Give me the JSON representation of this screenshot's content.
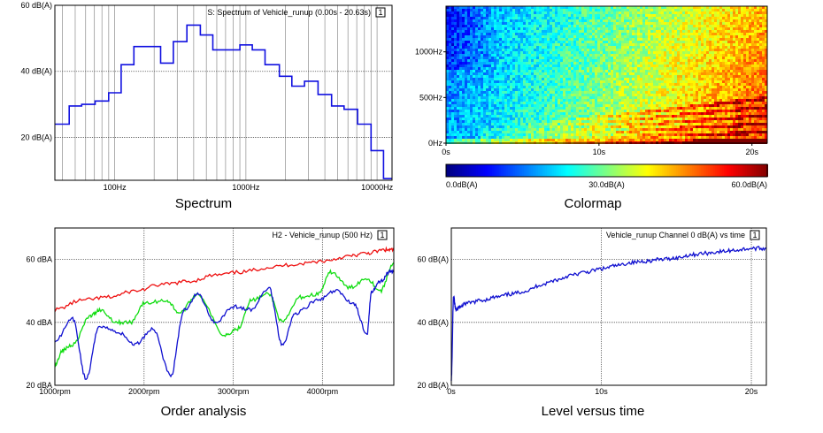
{
  "captions": {
    "spectrum": "Spectrum",
    "colormap": "Colormap",
    "order": "Order analysis",
    "level": "Level versus time"
  },
  "colors": {
    "spectrum_line": "#1010e0",
    "red_series": "#ee1010",
    "green_series": "#10dd10",
    "blue_series": "#1010d0",
    "grid": "#9a9a9a",
    "frame": "#000000"
  },
  "chart_data": [
    {
      "id": "spectrum",
      "type": "line",
      "title": "S: Spectrum of Vehicle_runup (0.00s - 20.63s)",
      "cursor_badge": "1",
      "x_scale": "log",
      "xlim": [
        35,
        13000
      ],
      "ylim": [
        7,
        60
      ],
      "x_ticks": [
        {
          "v": 100,
          "label": "100Hz"
        },
        {
          "v": 1000,
          "label": "1000Hz"
        },
        {
          "v": 10000,
          "label": "10000Hz"
        }
      ],
      "y_ticks": [
        {
          "v": 60,
          "label": "60 dB(A)"
        },
        {
          "v": 40,
          "label": "40 dB(A)"
        },
        {
          "v": 20,
          "label": "20 dB(A)"
        }
      ],
      "style": "steps",
      "bands": [
        {
          "f0": 35,
          "f1": 45,
          "y": 24
        },
        {
          "f0": 45,
          "f1": 56,
          "y": 29.5
        },
        {
          "f0": 56,
          "f1": 71,
          "y": 30
        },
        {
          "f0": 71,
          "f1": 90,
          "y": 31
        },
        {
          "f0": 90,
          "f1": 112,
          "y": 33.5
        },
        {
          "f0": 112,
          "f1": 140,
          "y": 42
        },
        {
          "f0": 140,
          "f1": 224,
          "y": 47.5
        },
        {
          "f0": 224,
          "f1": 280,
          "y": 42.5
        },
        {
          "f0": 280,
          "f1": 355,
          "y": 49
        },
        {
          "f0": 355,
          "f1": 450,
          "y": 54
        },
        {
          "f0": 450,
          "f1": 560,
          "y": 51
        },
        {
          "f0": 560,
          "f1": 900,
          "y": 46.5
        },
        {
          "f0": 900,
          "f1": 1120,
          "y": 48
        },
        {
          "f0": 1120,
          "f1": 1400,
          "y": 46.5
        },
        {
          "f0": 1400,
          "f1": 1800,
          "y": 42
        },
        {
          "f0": 1800,
          "f1": 2240,
          "y": 38.5
        },
        {
          "f0": 2240,
          "f1": 2800,
          "y": 35.5
        },
        {
          "f0": 2800,
          "f1": 3550,
          "y": 37
        },
        {
          "f0": 3550,
          "f1": 4500,
          "y": 33
        },
        {
          "f0": 4500,
          "f1": 5600,
          "y": 29.5
        },
        {
          "f0": 5600,
          "f1": 7100,
          "y": 28.5
        },
        {
          "f0": 7100,
          "f1": 9000,
          "y": 24
        },
        {
          "f0": 9000,
          "f1": 11200,
          "y": 16
        },
        {
          "f0": 11200,
          "f1": 13000,
          "y": 7.5
        }
      ]
    },
    {
      "id": "colormap",
      "type": "heatmap",
      "xlim": [
        0,
        21
      ],
      "ylim": [
        0,
        1500
      ],
      "x_ticks": [
        {
          "v": 0,
          "label": "0s"
        },
        {
          "v": 10,
          "label": "10s"
        },
        {
          "v": 20,
          "label": "20s"
        }
      ],
      "y_ticks": [
        {
          "v": 1000,
          "label": "1000Hz"
        },
        {
          "v": 500,
          "label": "500Hz"
        },
        {
          "v": 0,
          "label": "0Hz"
        }
      ],
      "colorbar": {
        "min": 0,
        "max": 60,
        "labels": [
          "0.0dB(A)",
          "30.0dB(A)",
          "60.0dB(A)"
        ]
      },
      "colormap": "jet"
    },
    {
      "id": "order",
      "type": "line",
      "title": "H2 - Vehicle_runup (500 Hz)",
      "cursor_badge": "1",
      "xlim": [
        1000,
        4800
      ],
      "ylim": [
        20,
        70
      ],
      "x_ticks": [
        {
          "v": 1000,
          "label": "1000rpm"
        },
        {
          "v": 2000,
          "label": "2000rpm"
        },
        {
          "v": 3000,
          "label": "3000rpm"
        },
        {
          "v": 4000,
          "label": "4000rpm"
        }
      ],
      "y_ticks": [
        {
          "v": 60,
          "label": "60 dBA"
        },
        {
          "v": 40,
          "label": "40 dBA"
        },
        {
          "v": 20,
          "label": "20 dBA"
        }
      ],
      "series": [
        {
          "color_key": "red_series",
          "x": [
            1000,
            1300,
            1600,
            1900,
            2200,
            2500,
            2800,
            3100,
            3400,
            3700,
            4000,
            4300,
            4500,
            4700,
            4800
          ],
          "y": [
            44,
            47,
            48,
            50,
            52,
            53,
            55,
            56,
            57.5,
            58.5,
            59.5,
            61,
            62,
            63,
            63
          ]
        },
        {
          "color_key": "green_series",
          "x": [
            1000,
            1080,
            1200,
            1400,
            1500,
            1700,
            1850,
            2000,
            2250,
            2400,
            2600,
            2900,
            3050,
            3200,
            3400,
            3550,
            3750,
            3950,
            4100,
            4300,
            4500,
            4650,
            4800
          ],
          "y": [
            26,
            31,
            33,
            42,
            44,
            40,
            40,
            46,
            47,
            43,
            49,
            36,
            38,
            47,
            49,
            40,
            48,
            49,
            56,
            51,
            54,
            50,
            59
          ]
        },
        {
          "color_key": "blue_series",
          "x": [
            1000,
            1200,
            1350,
            1500,
            1700,
            1900,
            2100,
            2300,
            2450,
            2600,
            2800,
            3000,
            3200,
            3400,
            3550,
            3700,
            3950,
            4150,
            4350,
            4500,
            4550,
            4650,
            4750,
            4800
          ],
          "y": [
            34,
            41,
            22,
            39,
            37,
            33,
            38,
            23,
            44,
            49,
            40,
            45,
            44,
            51,
            33,
            43,
            47,
            50,
            46,
            36,
            50,
            53,
            56,
            56
          ]
        }
      ]
    },
    {
      "id": "level",
      "type": "line",
      "title": "Vehicle_runup Channel 0 dB(A) vs time",
      "cursor_badge": "1",
      "xlim": [
        0,
        21
      ],
      "ylim": [
        20,
        70
      ],
      "x_ticks": [
        {
          "v": 0,
          "label": "0s"
        },
        {
          "v": 10,
          "label": "10s"
        },
        {
          "v": 20,
          "label": "20s"
        }
      ],
      "y_ticks": [
        {
          "v": 60,
          "label": "60 dB(A)"
        },
        {
          "v": 40,
          "label": "40 dB(A)"
        },
        {
          "v": 20,
          "label": "20 dB(A)"
        }
      ],
      "series": [
        {
          "color_key": "blue_series",
          "x": [
            0,
            0.15,
            0.3,
            0.6,
            1,
            2,
            3,
            4,
            5,
            6,
            7,
            8,
            9,
            10,
            11,
            12,
            13,
            14,
            15,
            16,
            17,
            18,
            19,
            20,
            21
          ],
          "y": [
            22,
            48,
            44,
            45,
            46,
            47,
            48,
            49,
            50,
            52,
            53.5,
            55,
            56,
            57,
            58,
            59,
            59.5,
            60,
            60.5,
            61.5,
            62,
            62.5,
            63,
            63.5,
            63.5
          ]
        }
      ]
    }
  ]
}
